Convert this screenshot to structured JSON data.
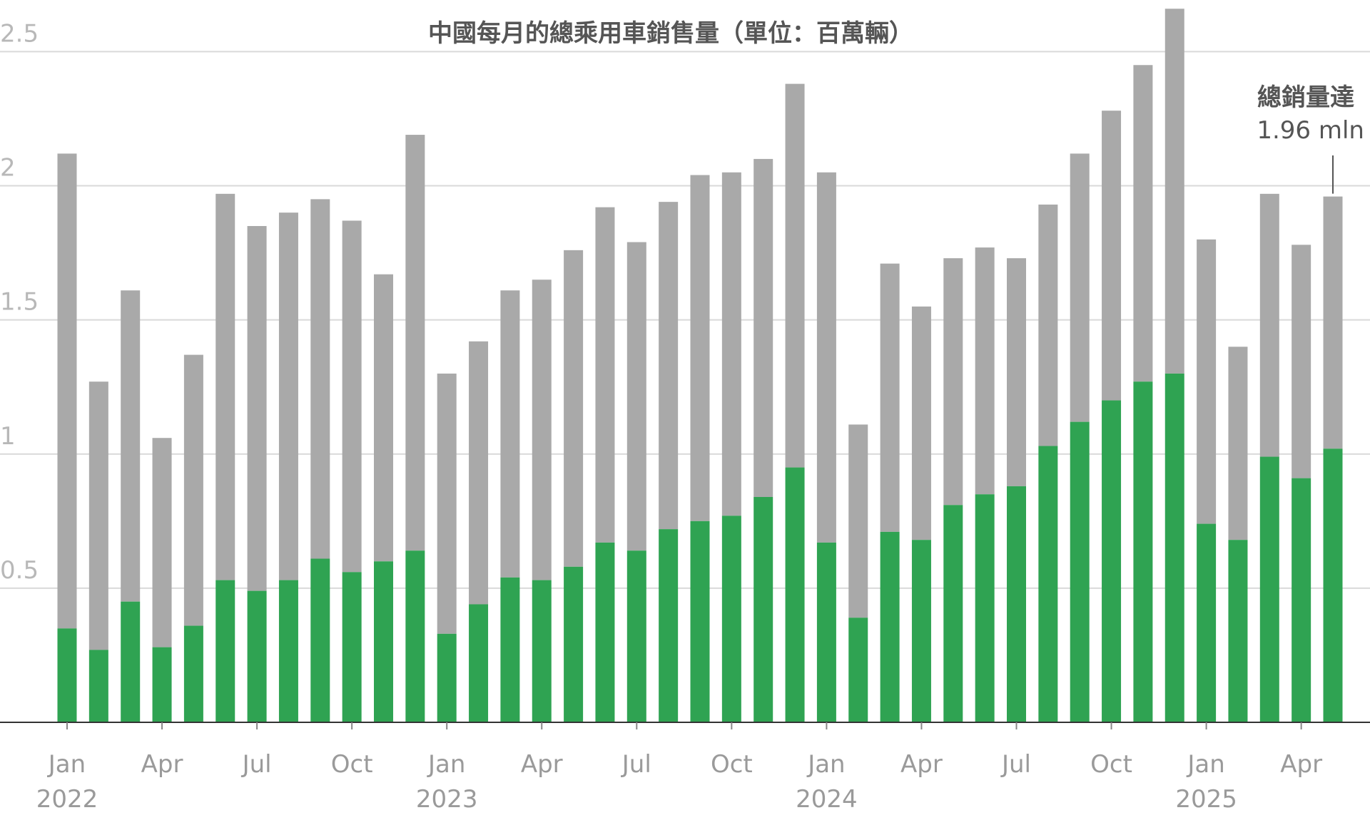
{
  "chart_data": {
    "type": "bar",
    "stacked": true,
    "title": "中國每月的總乘用車銷售量（單位：百萬輛）",
    "ylim": [
      0,
      2.65
    ],
    "y_ticks": [
      {
        "value": 0.5,
        "label": "0.5"
      },
      {
        "value": 1,
        "label": "1"
      },
      {
        "value": 1.5,
        "label": "1.5"
      },
      {
        "value": 2,
        "label": "2"
      },
      {
        "value": 2.5,
        "label": "2.5"
      }
    ],
    "grid": true,
    "colors": {
      "green": "#2fa352",
      "gray": "#a9a9a9",
      "grid": "#d9d9d9",
      "axis": "#333333"
    },
    "categories": [
      "2022-01",
      "2022-02",
      "2022-03",
      "2022-04",
      "2022-05",
      "2022-06",
      "2022-07",
      "2022-08",
      "2022-09",
      "2022-10",
      "2022-11",
      "2022-12",
      "2023-01",
      "2023-02",
      "2023-03",
      "2023-04",
      "2023-05",
      "2023-06",
      "2023-07",
      "2023-08",
      "2023-09",
      "2023-10",
      "2023-11",
      "2023-12",
      "2024-01",
      "2024-02",
      "2024-03",
      "2024-04",
      "2024-05",
      "2024-06",
      "2024-07",
      "2024-08",
      "2024-09",
      "2024-10",
      "2024-11",
      "2024-12",
      "2025-01",
      "2025-02",
      "2025-03",
      "2025-04",
      "2025-05"
    ],
    "x_tick_labels": [
      {
        "index": 0,
        "month": "Jan",
        "year": "2022"
      },
      {
        "index": 3,
        "month": "Apr",
        "year": ""
      },
      {
        "index": 6,
        "month": "Jul",
        "year": ""
      },
      {
        "index": 9,
        "month": "Oct",
        "year": ""
      },
      {
        "index": 12,
        "month": "Jan",
        "year": "2023"
      },
      {
        "index": 15,
        "month": "Apr",
        "year": ""
      },
      {
        "index": 18,
        "month": "Jul",
        "year": ""
      },
      {
        "index": 21,
        "month": "Oct",
        "year": ""
      },
      {
        "index": 24,
        "month": "Jan",
        "year": "2024"
      },
      {
        "index": 27,
        "month": "Apr",
        "year": ""
      },
      {
        "index": 30,
        "month": "Jul",
        "year": ""
      },
      {
        "index": 33,
        "month": "Oct",
        "year": ""
      },
      {
        "index": 36,
        "month": "Jan",
        "year": "2025"
      },
      {
        "index": 39,
        "month": "Apr",
        "year": ""
      }
    ],
    "series": [
      {
        "color": "green",
        "values": [
          0.35,
          0.27,
          0.45,
          0.28,
          0.36,
          0.53,
          0.49,
          0.53,
          0.61,
          0.56,
          0.6,
          0.64,
          0.33,
          0.44,
          0.54,
          0.53,
          0.58,
          0.67,
          0.64,
          0.72,
          0.75,
          0.77,
          0.84,
          0.95,
          0.67,
          0.39,
          0.71,
          0.68,
          0.81,
          0.85,
          0.88,
          1.03,
          1.12,
          1.2,
          1.27,
          1.3,
          0.74,
          0.68,
          0.99,
          0.91,
          1.02
        ]
      },
      {
        "color": "gray",
        "total_values": [
          2.12,
          1.27,
          1.61,
          1.06,
          1.37,
          1.97,
          1.85,
          1.9,
          1.95,
          1.87,
          1.67,
          2.19,
          1.3,
          1.42,
          1.61,
          1.65,
          1.76,
          1.92,
          1.79,
          1.94,
          2.04,
          2.05,
          2.1,
          2.38,
          2.05,
          1.11,
          1.71,
          1.55,
          1.73,
          1.77,
          1.73,
          1.93,
          2.12,
          2.28,
          2.45,
          2.66,
          1.8,
          1.4,
          1.97,
          1.78,
          1.96
        ]
      }
    ],
    "annotation": {
      "index": 40,
      "line1": "總銷量達",
      "line2": "1.96 mln"
    }
  }
}
